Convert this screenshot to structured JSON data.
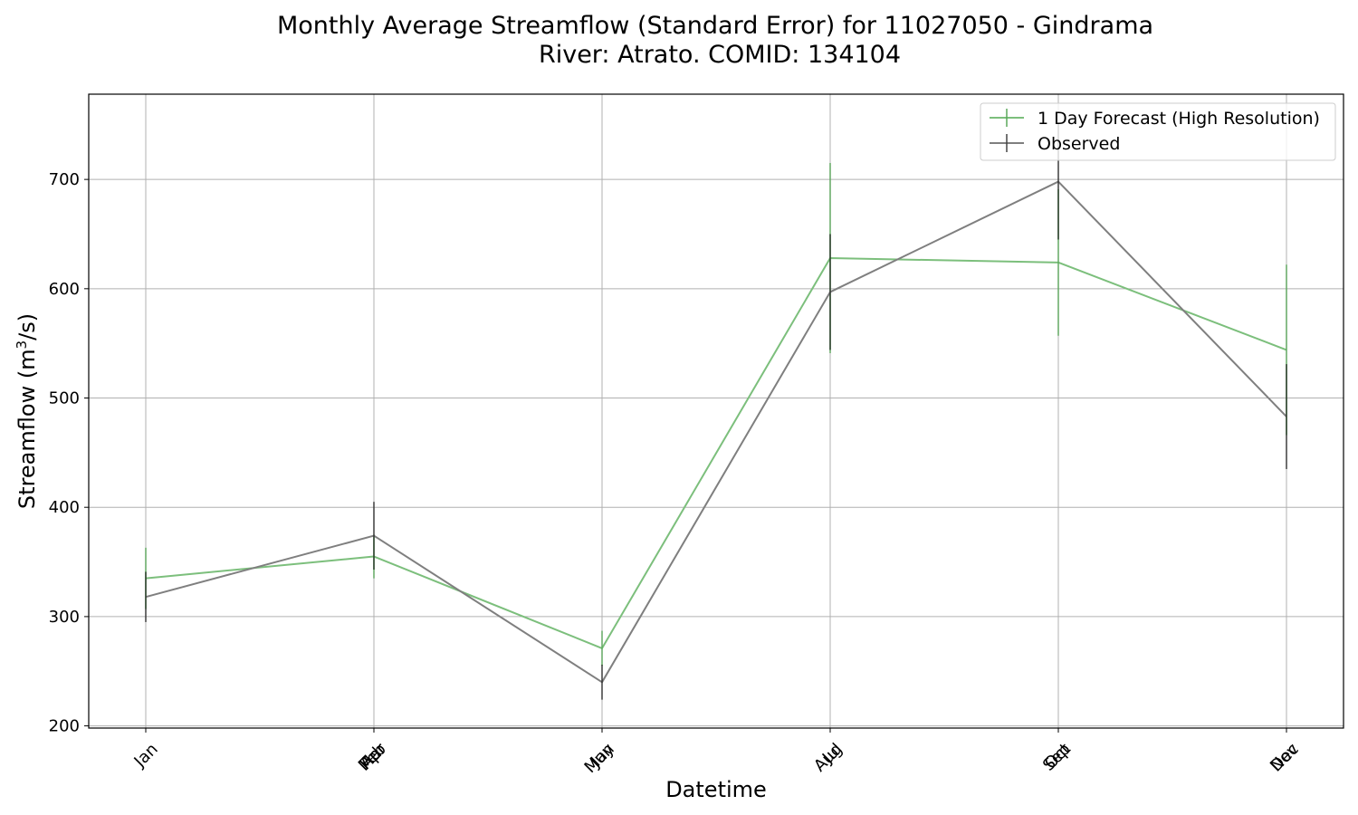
{
  "chart_data": {
    "type": "line",
    "title_lines": [
      "Monthly Average Streamflow (Standard Error) for 11027050 - Gindrama",
      "River: Atrato. COMID: 134104"
    ],
    "xlabel": "Datetime",
    "ylabel": "Streamflow (m",
    "ylabel_sup": "3",
    "ylabel_tail": "/s)",
    "ylim": [
      198,
      778
    ],
    "yticks": [
      200,
      300,
      400,
      500,
      600,
      700
    ],
    "grid": true,
    "legend_position": "top-right",
    "x_ticks": [
      "Jan",
      "Feb",
      "Mar",
      "Apr",
      "May",
      "Jun",
      "Jul",
      "Aug",
      "Sep",
      "Oct",
      "Nov",
      "Dec"
    ],
    "x_tick_positions": [
      0,
      1,
      1,
      1,
      2,
      2,
      3,
      3,
      4,
      4,
      5,
      5
    ],
    "x_point_positions": [
      0,
      1,
      2,
      3,
      4,
      5
    ],
    "series": [
      {
        "name": "1 Day Forecast (High Resolution)",
        "color": "#7cbf7c",
        "values": [
          335,
          355,
          271,
          628,
          624,
          544
        ],
        "errors": [
          28,
          20,
          16,
          87,
          67,
          78
        ]
      },
      {
        "name": "Observed",
        "color": "#7f7f7f",
        "values": [
          318,
          374,
          240,
          597,
          698,
          483
        ],
        "errors": [
          23,
          31,
          16,
          53,
          53,
          48
        ]
      }
    ]
  }
}
